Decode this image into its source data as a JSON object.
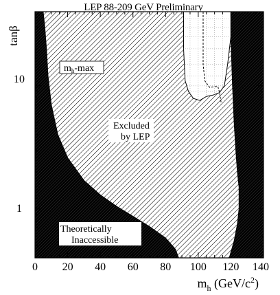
{
  "chart_data": {
    "type": "area",
    "title": "LEP 88-209 GeV Preliminary",
    "xlabel_main": "m",
    "xlabel_sub": "h",
    "xlabel_unit": " (GeV/c",
    "xlabel_sup": "2",
    "xlabel_close": ")",
    "ylabel": "tanβ",
    "xlim": [
      0,
      140
    ],
    "ylim": [
      0.4,
      40
    ],
    "yscale": "log",
    "x_ticks": [
      {
        "value": 0,
        "label": "0"
      },
      {
        "value": 20,
        "label": "20"
      },
      {
        "value": 40,
        "label": "40"
      },
      {
        "value": 60,
        "label": "60"
      },
      {
        "value": 80,
        "label": "80"
      },
      {
        "value": 100,
        "label": "100"
      },
      {
        "value": 120,
        "label": "120"
      },
      {
        "value": 140,
        "label": "140"
      }
    ],
    "y_ticks": [
      {
        "value": 1,
        "label": "1"
      },
      {
        "value": 10,
        "label": "10"
      }
    ],
    "grid": "dotted, allowed region only",
    "annotations": {
      "scenario_main": "m",
      "scenario_sub": "h",
      "scenario_rest": "-max",
      "excluded_1": "Excluded",
      "excluded_2": "by LEP",
      "theory_1": "Theoretically",
      "theory_2": "Inaccessible"
    },
    "regions": [
      {
        "name": "Theoretically Inaccessible (left)",
        "fill": "#000000",
        "boundary": [
          [
            0,
            40
          ],
          [
            5,
            40
          ],
          [
            6,
            30
          ],
          [
            7,
            20
          ],
          [
            8,
            12
          ],
          [
            10,
            7
          ],
          [
            14,
            4
          ],
          [
            20,
            2.6
          ],
          [
            30,
            1.7
          ],
          [
            40,
            1.3
          ],
          [
            50,
            1.05
          ],
          [
            60,
            0.87
          ],
          [
            70,
            0.72
          ],
          [
            80,
            0.58
          ],
          [
            86,
            0.47
          ],
          [
            88,
            0.4
          ]
        ]
      },
      {
        "name": "Theoretically Inaccessible (right)",
        "fill": "#000000",
        "boundary": [
          [
            120,
            40
          ],
          [
            120,
            25
          ],
          [
            121,
            10
          ],
          [
            122,
            5
          ],
          [
            123,
            3
          ],
          [
            124,
            2
          ],
          [
            125,
            1.5
          ],
          [
            125,
            1.0
          ],
          [
            124,
            0.75
          ],
          [
            122,
            0.55
          ],
          [
            119,
            0.4
          ]
        ]
      },
      {
        "name": "Excluded by LEP",
        "fill": "#555555",
        "boundary": [
          [
            91,
            40
          ],
          [
            91,
            20
          ],
          [
            92,
            11
          ],
          [
            93,
            9
          ],
          [
            96,
            7.8
          ],
          [
            100,
            7.4
          ],
          [
            103,
            7.7
          ],
          [
            106,
            8.2
          ],
          [
            108,
            7.6
          ],
          [
            108.5,
            5.5
          ],
          [
            108,
            4
          ],
          [
            106,
            3
          ],
          [
            103,
            2.2
          ],
          [
            101,
            1.6
          ],
          [
            101,
            1.1
          ],
          [
            103,
            0.85
          ],
          [
            108,
            0.65
          ],
          [
            113,
            0.5
          ],
          [
            116,
            0.4
          ]
        ]
      },
      {
        "name": "Allowed (upper right)",
        "fill": "#ffffff",
        "boundary": [
          [
            91,
            40
          ],
          [
            120,
            40
          ],
          [
            120,
            25
          ],
          [
            118,
            15
          ],
          [
            116,
            10
          ],
          [
            113,
            8.8
          ],
          [
            109,
            8.4
          ],
          [
            105,
            8.2
          ],
          [
            101,
            7.6
          ],
          [
            97,
            7.9
          ],
          [
            94,
            9
          ],
          [
            92,
            11
          ],
          [
            91,
            20
          ]
        ]
      }
    ],
    "expected_limit": {
      "style": "dashed",
      "points": [
        [
          103,
          40
        ],
        [
          103,
          15
        ],
        [
          104,
          11
        ],
        [
          107,
          9.7
        ],
        [
          112,
          9.9
        ],
        [
          113,
          8.9
        ],
        [
          114,
          7.3
        ]
      ]
    }
  }
}
